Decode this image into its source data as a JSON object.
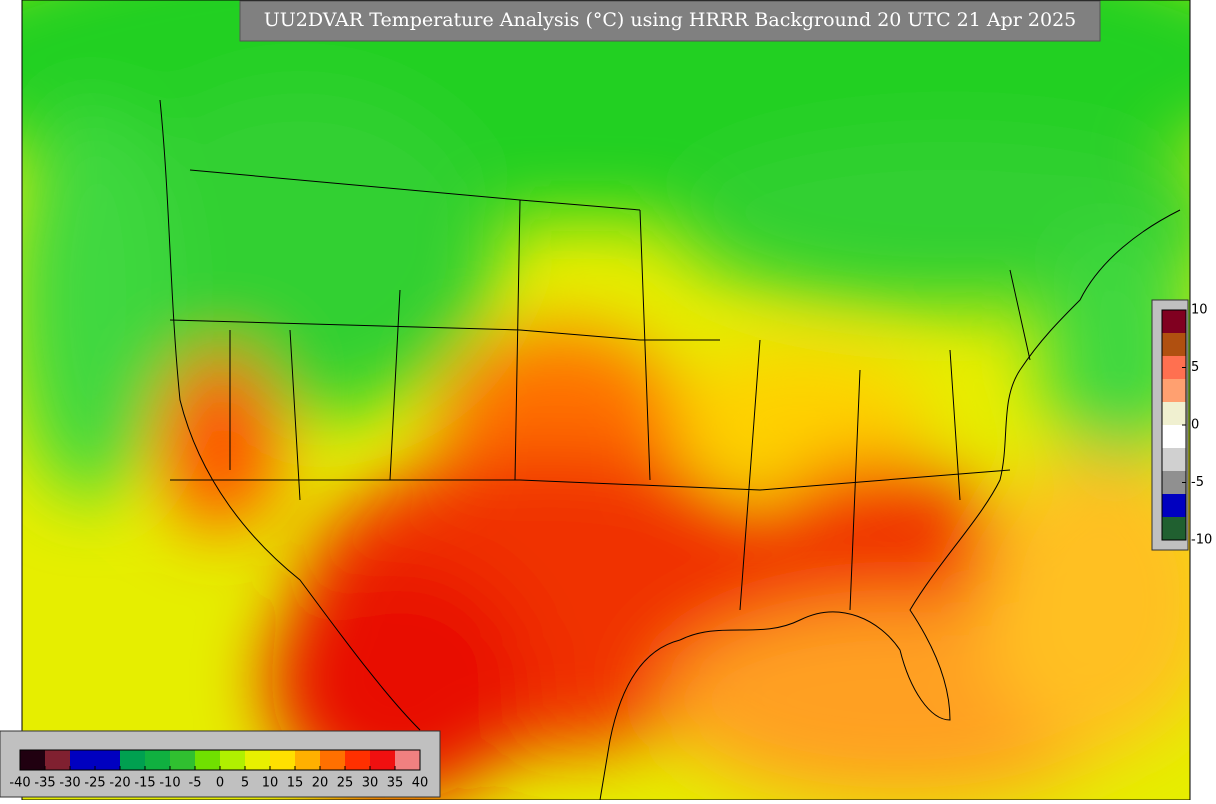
{
  "header": {
    "title": "UU2DVAR Temperature Analysis (°C) using HRRR Background 20 UTC 21 Apr 2025"
  },
  "main_colorbar": {
    "ticks": [
      -40,
      -35,
      -30,
      -25,
      -20,
      -15,
      -10,
      -5,
      0,
      5,
      10,
      15,
      20,
      25,
      30,
      35,
      40
    ],
    "colors": [
      "#200010",
      "#802030",
      "#0000c0",
      "#0000c0",
      "#00a050",
      "#10b040",
      "#30c030",
      "#70e000",
      "#b0f000",
      "#e8f000",
      "#ffe000",
      "#ffb000",
      "#ff7000",
      "#ff3000",
      "#f01010",
      "#f08080"
    ]
  },
  "side_colorbar": {
    "ticks": [
      10,
      5,
      0,
      -5,
      -10
    ],
    "colors": [
      "#800020",
      "#b05010",
      "#ff7050",
      "#ffa070",
      "#f0f0d0",
      "#ffffff",
      "#d0d0d0",
      "#909090",
      "#0000c0",
      "#206030"
    ]
  }
}
